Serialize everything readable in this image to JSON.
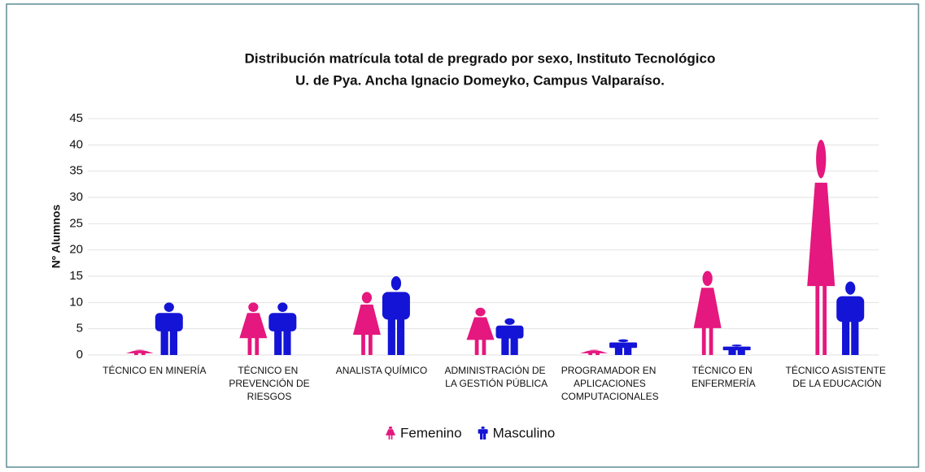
{
  "chart_data": {
    "type": "pictograph",
    "title": [
      "Distribución matrícula total de pregrado por sexo, Instituto Tecnológico",
      "U. de Pya. Ancha Ignacio Domeyko, Campus Valparaíso."
    ],
    "y_label": "Nº Alumnos",
    "categories": [
      "TÉCNICO EN MINERÍA",
      "TÉCNICO EN PREVENCIÓN DE RIESGOS",
      "ANALISTA QUÍMICO",
      "ADMINISTRACIÓN DE LA GESTIÓN PÚBLICA",
      "PROGRAMADOR EN APLICACIONES COMPUTACIONALES",
      "TÉCNICO EN ENFERMERÍA",
      "TÉCNICO ASISTENTE DE LA EDUCACIÓN"
    ],
    "series": [
      {
        "name": "Femenino",
        "color": "#e4187e",
        "values": [
          1,
          10,
          12,
          9,
          1,
          16,
          41
        ]
      },
      {
        "name": "Masculino",
        "color": "#1414d6",
        "values": [
          10,
          10,
          15,
          7,
          3,
          2,
          14
        ]
      }
    ],
    "ylim": [
      0,
      45
    ],
    "yticks": [
      0,
      5,
      10,
      15,
      20,
      25,
      30,
      35,
      40,
      45
    ],
    "grid": true,
    "legend": "bottom"
  }
}
